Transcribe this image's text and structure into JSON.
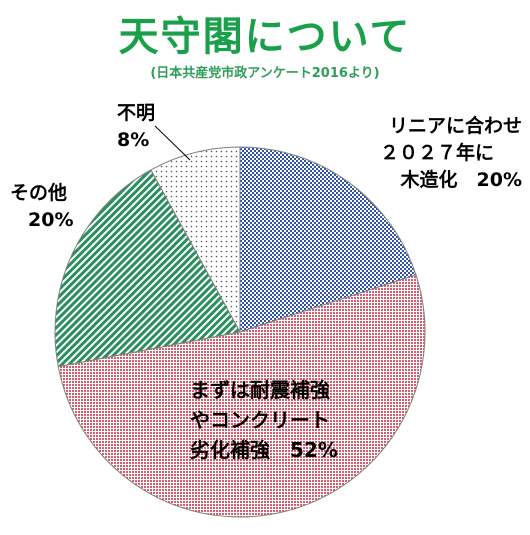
{
  "title": "天守閣について",
  "subtitle": "(日本共産党市政アンケート2016より)",
  "colors": {
    "title": "#1aa04a",
    "subtitle": "#2e9e58",
    "slice_blue": "#2f54a7",
    "slice_pink": "#d65d6d",
    "slice_green": "#2a8f5e",
    "slice_dots": "#555555",
    "outline": "#7f7f7f"
  },
  "chart_data": {
    "type": "pie",
    "slices": [
      {
        "label": [
          "リニアに合わせ",
          "２０２７年に",
          "木造化　20%"
        ],
        "value": 20
      },
      {
        "label": [
          "まずは耐震補強",
          "やコンクリート",
          "劣化補強　52%"
        ],
        "value": 52
      },
      {
        "label": [
          "その他",
          "20%"
        ],
        "value": 20
      },
      {
        "label": [
          "不明",
          "8%"
        ],
        "value": 8
      }
    ]
  }
}
